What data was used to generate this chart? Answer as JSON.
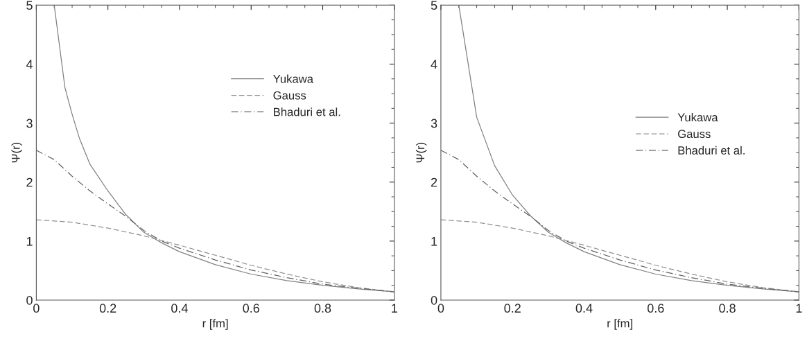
{
  "chart_data": [
    {
      "type": "line",
      "xlabel": "r [fm]",
      "ylabel": "Ψ(r)",
      "xlim": [
        0,
        1
      ],
      "ylim": [
        0,
        5
      ],
      "xticks": [
        0,
        0.2,
        0.4,
        0.6,
        0.8,
        1
      ],
      "yticks": [
        0,
        1,
        2,
        3,
        4,
        5
      ],
      "grid": false,
      "legend": "top right",
      "series": [
        {
          "name": "Yukawa",
          "color": "#808080",
          "line_style": "solid",
          "x": [
            0.05,
            0.08,
            0.1,
            0.12,
            0.15,
            0.2,
            0.25,
            0.3,
            0.35,
            0.4,
            0.5,
            0.6,
            0.7,
            0.8,
            0.9,
            1.0
          ],
          "values": [
            5.0,
            3.6,
            3.15,
            2.75,
            2.3,
            1.85,
            1.45,
            1.15,
            0.97,
            0.82,
            0.6,
            0.44,
            0.33,
            0.25,
            0.19,
            0.14
          ]
        },
        {
          "name": "Gauss",
          "color": "#909090",
          "line_style": "dashed",
          "x": [
            0,
            0.1,
            0.2,
            0.3,
            0.4,
            0.5,
            0.6,
            0.7,
            0.8,
            0.9,
            1.0
          ],
          "values": [
            1.36,
            1.32,
            1.22,
            1.09,
            0.93,
            0.76,
            0.59,
            0.44,
            0.31,
            0.21,
            0.14
          ]
        },
        {
          "name": "Bhaduri et al.",
          "color": "#606060",
          "line_style": "dashdot",
          "x": [
            0,
            0.05,
            0.1,
            0.15,
            0.2,
            0.25,
            0.3,
            0.35,
            0.4,
            0.5,
            0.6,
            0.7,
            0.8,
            0.9,
            1.0
          ],
          "values": [
            2.54,
            2.38,
            2.1,
            1.85,
            1.63,
            1.42,
            1.18,
            1.0,
            0.88,
            0.68,
            0.51,
            0.38,
            0.27,
            0.2,
            0.14
          ]
        }
      ]
    },
    {
      "type": "line",
      "xlabel": "r [fm]",
      "ylabel": "Ψ(r)",
      "xlim": [
        0,
        1
      ],
      "ylim": [
        0,
        5
      ],
      "xticks": [
        0,
        0.2,
        0.4,
        0.6,
        0.8,
        1
      ],
      "yticks": [
        0,
        1,
        2,
        3,
        4,
        5
      ],
      "grid": false,
      "legend": "right",
      "series": [
        {
          "name": "Yukawa",
          "color": "#808080",
          "line_style": "solid",
          "x": [
            0.05,
            0.1,
            0.15,
            0.2,
            0.25,
            0.3,
            0.35,
            0.4,
            0.5,
            0.6,
            0.7,
            0.8,
            0.9,
            1.0
          ],
          "values": [
            5.0,
            3.1,
            2.28,
            1.78,
            1.43,
            1.15,
            0.97,
            0.82,
            0.6,
            0.44,
            0.33,
            0.25,
            0.19,
            0.14
          ]
        },
        {
          "name": "Gauss",
          "color": "#909090",
          "line_style": "dashed",
          "x": [
            0,
            0.1,
            0.2,
            0.3,
            0.4,
            0.5,
            0.6,
            0.7,
            0.8,
            0.9,
            1.0
          ],
          "values": [
            1.36,
            1.32,
            1.22,
            1.09,
            0.93,
            0.76,
            0.59,
            0.44,
            0.31,
            0.21,
            0.14
          ]
        },
        {
          "name": "Bhaduri et al.",
          "color": "#606060",
          "line_style": "dashdot",
          "x": [
            0,
            0.05,
            0.1,
            0.15,
            0.2,
            0.25,
            0.3,
            0.35,
            0.4,
            0.5,
            0.6,
            0.7,
            0.8,
            0.9,
            1.0
          ],
          "values": [
            2.54,
            2.38,
            2.1,
            1.85,
            1.63,
            1.42,
            1.18,
            1.0,
            0.88,
            0.68,
            0.51,
            0.38,
            0.27,
            0.2,
            0.14
          ]
        }
      ]
    }
  ]
}
